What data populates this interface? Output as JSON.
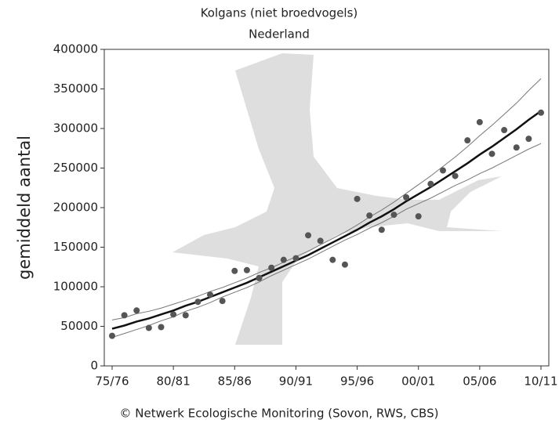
{
  "chart_data": {
    "type": "scatter",
    "title": "Kolgans (niet broedvogels)",
    "subtitle": "Nederland",
    "y_label": "gemiddeld aantal",
    "footer": "© Netwerk Ecologische Monitoring (Sovon, RWS, CBS)",
    "categories": [
      "75/76",
      null,
      null,
      null,
      null,
      "80/81",
      null,
      null,
      null,
      null,
      "85/86",
      null,
      null,
      null,
      null,
      "90/91",
      null,
      null,
      null,
      null,
      "95/96",
      null,
      null,
      null,
      null,
      "00/01",
      null,
      null,
      null,
      null,
      "05/06",
      null,
      null,
      null,
      null,
      "10/11"
    ],
    "values": [
      38000,
      64000,
      70000,
      48000,
      49000,
      65000,
      64000,
      81000,
      90000,
      82000,
      120000,
      121000,
      111000,
      124000,
      134000,
      136000,
      165000,
      158000,
      134000,
      128000,
      211000,
      190000,
      172000,
      191000,
      213000,
      189000,
      230000,
      247000,
      240000,
      285000,
      308000,
      268000,
      298000,
      276000,
      287000,
      320000
    ],
    "color": "#555555",
    "trend": {
      "color": "#111111",
      "values": [
        47000,
        51000,
        56000,
        60000,
        65000,
        70000,
        76000,
        81000,
        87000,
        93000,
        99000,
        105000,
        112000,
        119000,
        126000,
        133000,
        140000,
        148000,
        156000,
        164000,
        172000,
        181000,
        189000,
        198000,
        208000,
        217000,
        226000,
        236000,
        246000,
        256000,
        267000,
        277000,
        288000,
        299000,
        311000,
        322000
      ]
    },
    "upper": {
      "color": "#777777",
      "values": [
        58000,
        61000,
        66000,
        69000,
        73000,
        78000,
        83000,
        88000,
        94000,
        99000,
        105000,
        111000,
        118000,
        124000,
        131000,
        138000,
        145000,
        153000,
        161000,
        169000,
        178000,
        188000,
        197000,
        207000,
        218000,
        229000,
        240000,
        252000,
        264000,
        277000,
        291000,
        304000,
        318000,
        332000,
        348000,
        363000
      ]
    },
    "lower": {
      "color": "#777777",
      "values": [
        36000,
        41000,
        46000,
        51000,
        57000,
        62000,
        69000,
        74000,
        80000,
        87000,
        93000,
        99000,
        106000,
        114000,
        121000,
        128000,
        135000,
        143000,
        151000,
        159000,
        166000,
        174000,
        181000,
        189000,
        198000,
        205000,
        212000,
        220000,
        228000,
        235000,
        243000,
        250000,
        258000,
        266000,
        274000,
        281000
      ]
    },
    "ylim": [
      0,
      400000
    ],
    "yticks": [
      0,
      50000,
      100000,
      150000,
      200000,
      250000,
      300000,
      350000,
      400000
    ]
  }
}
